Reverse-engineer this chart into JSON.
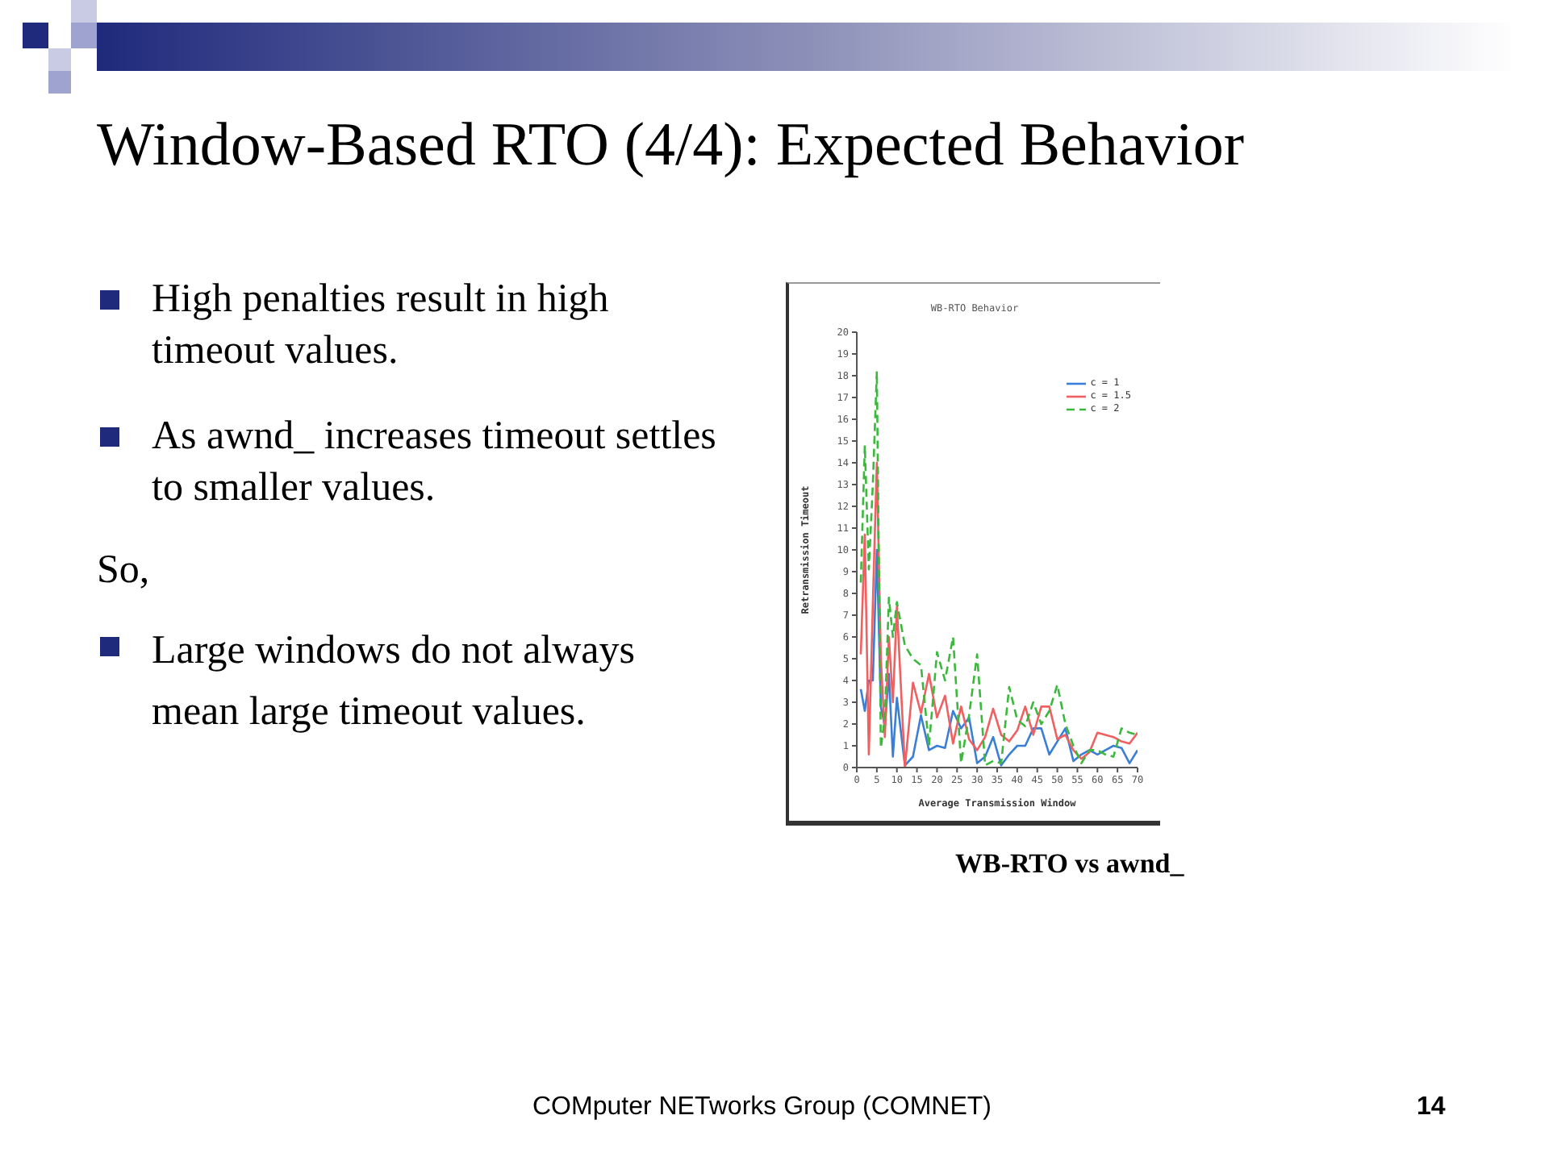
{
  "chart_data": {
    "type": "line",
    "title": "WB-RTO Behavior",
    "xlabel": "Average Transmission Window",
    "ylabel": "Retransmission Timeout",
    "x": [
      1,
      2,
      3,
      4,
      5,
      6,
      7,
      8,
      9,
      10,
      12,
      14,
      16,
      18,
      20,
      22,
      24,
      26,
      28,
      30,
      32,
      34,
      36,
      38,
      40,
      42,
      44,
      46,
      48,
      50,
      52,
      54,
      56,
      58,
      60,
      62,
      64,
      66,
      68,
      70
    ],
    "series": [
      {
        "name": "c = 1",
        "color": "#3a7fd5",
        "line_style": "solid",
        "values": [
          3.6,
          2.6,
          4.0,
          4.0,
          10.0,
          2.8,
          1.9,
          4.3,
          0.5,
          3.2,
          0.1,
          0.5,
          2.4,
          0.8,
          1.0,
          0.9,
          2.6,
          1.8,
          2.3,
          0.2,
          0.5,
          1.4,
          0.1,
          0.6,
          1.0,
          1.0,
          1.8,
          1.8,
          0.6,
          1.2,
          1.8,
          0.3,
          0.6,
          0.8,
          0.6,
          0.8,
          1.0,
          0.9,
          0.2,
          0.8
        ]
      },
      {
        "name": "c = 1.5",
        "color": "#f06060",
        "line_style": "solid",
        "values": [
          5.2,
          10.7,
          0.6,
          7.5,
          14.0,
          5.0,
          1.4,
          6.0,
          3.0,
          7.4,
          0.0,
          3.9,
          2.5,
          4.3,
          2.3,
          3.3,
          1.1,
          2.8,
          1.3,
          0.8,
          1.4,
          2.7,
          1.5,
          1.2,
          1.7,
          2.8,
          1.5,
          2.8,
          2.8,
          1.3,
          1.5,
          0.8,
          0.4,
          0.7,
          1.6,
          1.5,
          1.4,
          1.2,
          1.1,
          1.6
        ]
      },
      {
        "name": "c = 2",
        "color": "#3cb83c",
        "line_style": "dashed",
        "values": [
          8.5,
          14.8,
          9.1,
          13.0,
          18.2,
          0.9,
          2.3,
          7.8,
          6.0,
          7.6,
          5.6,
          5.0,
          4.7,
          1.0,
          5.3,
          4.0,
          6.0,
          0.2,
          2.4,
          5.2,
          0.1,
          0.3,
          0.2,
          3.7,
          2.2,
          1.9,
          3.0,
          2.0,
          2.6,
          3.8,
          2.0,
          1.0,
          0.2,
          0.8,
          0.8,
          0.6,
          0.5,
          1.8,
          1.6,
          1.5
        ]
      }
    ],
    "xlim": [
      0,
      70
    ],
    "xticks": [
      0,
      5,
      10,
      15,
      20,
      25,
      30,
      35,
      40,
      45,
      50,
      55,
      60,
      65,
      70
    ],
    "ylim": [
      0,
      20
    ],
    "yticks": [
      0,
      1,
      2,
      3,
      4,
      5,
      6,
      7,
      8,
      9,
      10,
      11,
      12,
      13,
      14,
      15,
      16,
      17,
      18,
      19,
      20
    ],
    "legend": "top right",
    "marker": "none",
    "grid": false,
    "annotations": [
      "Window-Based RTO (4/4): Expected Behavior",
      "High penalties result in high timeout values.",
      "As awnd_ increases timeout settles to smaller values.",
      "So,",
      "Large windows do not always mean large timeout values.",
      "WB-RTO vs awnd_",
      "COMputer NETworks Group (COMNET)",
      "14"
    ]
  }
}
